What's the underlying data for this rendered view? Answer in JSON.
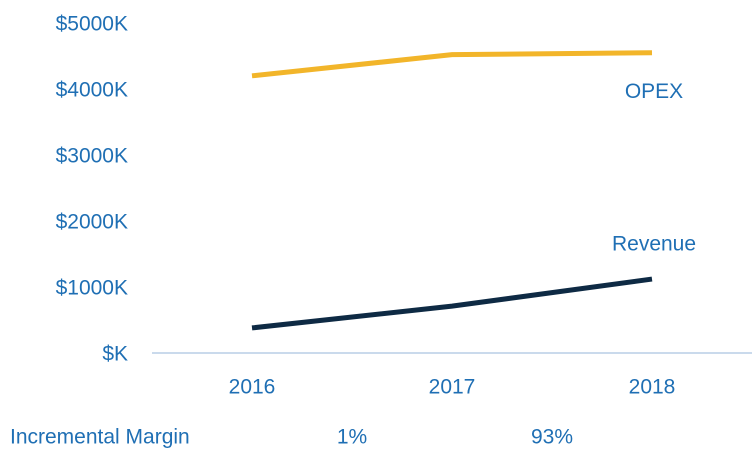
{
  "chart_data": {
    "type": "line",
    "categories": [
      "2016",
      "2017",
      "2018"
    ],
    "series": [
      {
        "name": "OPEX",
        "color": "#f2b52a",
        "values": [
          4200,
          4520,
          4550
        ]
      },
      {
        "name": "Revenue",
        "color": "#0e2a44",
        "values": [
          380,
          710,
          1120
        ]
      }
    ],
    "ylim": [
      0,
      5000
    ],
    "yticks": [
      {
        "value": 0,
        "label": "$K"
      },
      {
        "value": 1000,
        "label": "$1000K"
      },
      {
        "value": 2000,
        "label": "$2000K"
      },
      {
        "value": 3000,
        "label": "$3000K"
      },
      {
        "value": 4000,
        "label": "$4000K"
      },
      {
        "value": 5000,
        "label": "$5000K"
      }
    ],
    "grid": false,
    "annotation": {
      "label": "Incremental Margin",
      "values": [
        1,
        93
      ],
      "value_labels": [
        "1%",
        "93%"
      ]
    }
  }
}
